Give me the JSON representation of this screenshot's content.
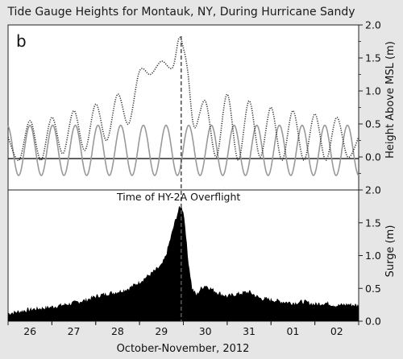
{
  "title": "Tide Gauge Heights for Montauk, NY, During Hurricane Sandy",
  "panel_label": "b",
  "annotation": "Time of HY-2A Overflight",
  "xlabel": "October-November, 2012",
  "colors": {
    "background": "#e6e6e6",
    "plot_bg": "#ffffff",
    "observed": "#333333",
    "predicted": "#999999",
    "surge_fill": "#000000",
    "marker": "#555555"
  },
  "chart_data": [
    {
      "type": "line",
      "name": "tide-heights",
      "ylabel": "Height Above MSL (m)",
      "ylim": [
        -0.5,
        2.0
      ],
      "yticks": [
        "0.0",
        "0.5",
        "1.0",
        "1.5",
        "2.0"
      ],
      "ytick_values": [
        0.0,
        0.5,
        1.0,
        1.5,
        2.0
      ],
      "xlim": [
        25.5,
        33.5
      ],
      "grid": false,
      "series": [
        {
          "style": "dotted-dark",
          "x": [
            25.5,
            25.75,
            26.0,
            26.25,
            26.5,
            26.75,
            27.0,
            27.25,
            27.5,
            27.75,
            28.0,
            28.25,
            28.5,
            28.75,
            29.0,
            29.25,
            29.4,
            29.5,
            29.6,
            29.75,
            30.0,
            30.25,
            30.5,
            30.75,
            31.0,
            31.25,
            31.5,
            31.75,
            32.0,
            32.25,
            32.5,
            32.75,
            33.0,
            33.25,
            33.5
          ],
          "y": [
            0.3,
            -0.05,
            0.55,
            -0.05,
            0.6,
            0.05,
            0.7,
            0.1,
            0.8,
            0.25,
            0.95,
            0.5,
            1.3,
            1.25,
            1.45,
            1.35,
            1.8,
            1.65,
            1.3,
            0.45,
            0.85,
            0.0,
            0.95,
            -0.05,
            0.85,
            0.0,
            0.75,
            -0.05,
            0.7,
            -0.05,
            0.65,
            -0.05,
            0.6,
            0.0,
            0.3
          ]
        },
        {
          "style": "solid-gray",
          "amplitude": 0.38,
          "offset": 0.1,
          "period_days": 0.5175,
          "phase_day": 26.0
        }
      ]
    },
    {
      "type": "area",
      "name": "surge",
      "ylabel": "Surge (m)",
      "ylim": [
        0.0,
        2.0
      ],
      "yticks": [
        "0.0",
        "0.5",
        "1.0",
        "1.5",
        "2.0"
      ],
      "ytick_values": [
        0.0,
        0.5,
        1.0,
        1.5,
        2.0
      ],
      "xlim": [
        25.5,
        33.5
      ],
      "categories": [
        "26",
        "27",
        "28",
        "29",
        "30",
        "31",
        "01",
        "02"
      ],
      "category_x": [
        26,
        27,
        28,
        29,
        30,
        31,
        32,
        33
      ],
      "grid": false,
      "x": [
        25.5,
        25.75,
        26.0,
        26.25,
        26.5,
        26.75,
        27.0,
        27.25,
        27.5,
        27.75,
        28.0,
        28.25,
        28.5,
        28.75,
        29.0,
        29.1,
        29.2,
        29.3,
        29.4,
        29.45,
        29.5,
        29.55,
        29.6,
        29.7,
        29.8,
        29.9,
        30.0,
        30.25,
        30.5,
        30.75,
        31.0,
        31.25,
        31.5,
        31.75,
        32.0,
        32.25,
        32.5,
        32.75,
        33.0,
        33.25,
        33.5
      ],
      "y": [
        0.12,
        0.15,
        0.18,
        0.2,
        0.22,
        0.25,
        0.28,
        0.32,
        0.38,
        0.42,
        0.45,
        0.5,
        0.6,
        0.72,
        0.85,
        1.0,
        1.25,
        1.5,
        1.72,
        1.75,
        1.68,
        1.4,
        1.0,
        0.5,
        0.4,
        0.5,
        0.55,
        0.45,
        0.38,
        0.42,
        0.45,
        0.35,
        0.33,
        0.3,
        0.28,
        0.3,
        0.26,
        0.28,
        0.24,
        0.26,
        0.24
      ]
    }
  ],
  "overflight_x": 29.45
}
